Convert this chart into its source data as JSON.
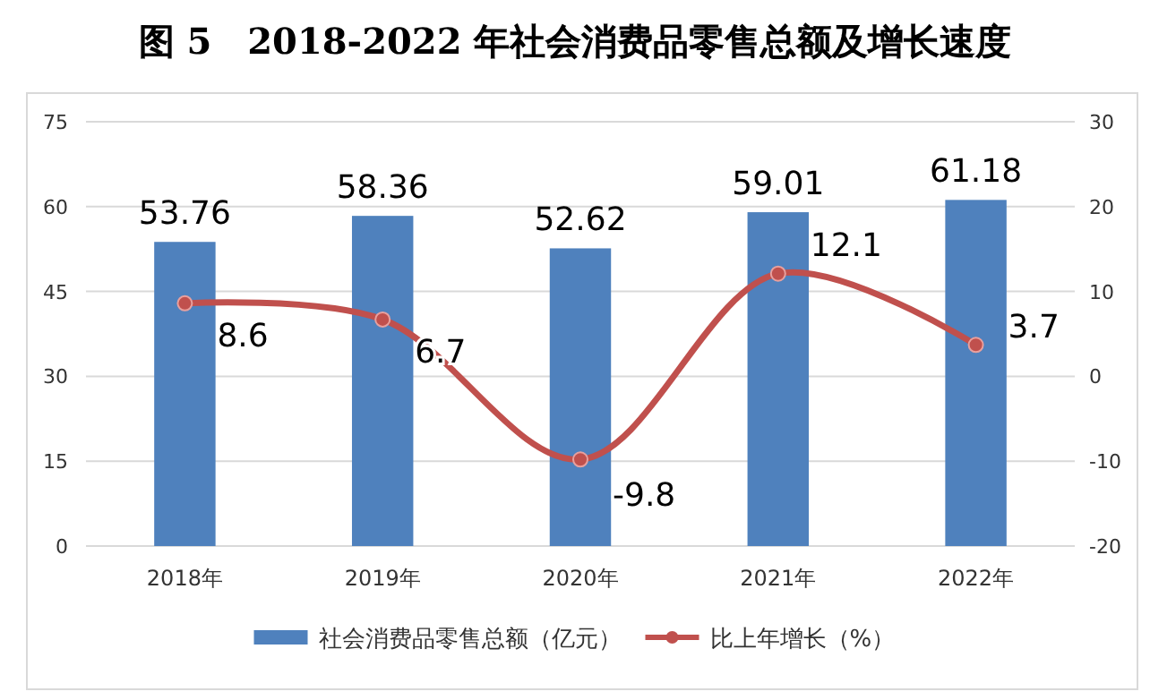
{
  "chart_data": {
    "type": "bar",
    "title": "图 5　2018-2022 年社会消费品零售总额及增长速度",
    "categories": [
      "2018年",
      "2019年",
      "2020年",
      "2021年",
      "2022年"
    ],
    "series": [
      {
        "name": "社会消费品零售总额（亿元）",
        "color": "#4f81bd",
        "values": [
          53.76,
          58.36,
          52.62,
          59.01,
          61.18
        ]
      },
      {
        "name": "比上年增长（%）",
        "type": "line",
        "axis": "y2",
        "color": "#c0504d",
        "marker": "circle",
        "values": [
          8.6,
          6.7,
          -9.8,
          12.1,
          3.7
        ]
      }
    ],
    "ylim": [
      0,
      75
    ],
    "yticks": [
      0,
      15,
      30,
      45,
      60,
      75
    ],
    "y2lim": [
      -20,
      30
    ],
    "y2ticks": [
      -20,
      -10,
      0,
      10,
      20,
      30
    ],
    "grid": "y",
    "legend": "bottom",
    "data_labels": true
  }
}
